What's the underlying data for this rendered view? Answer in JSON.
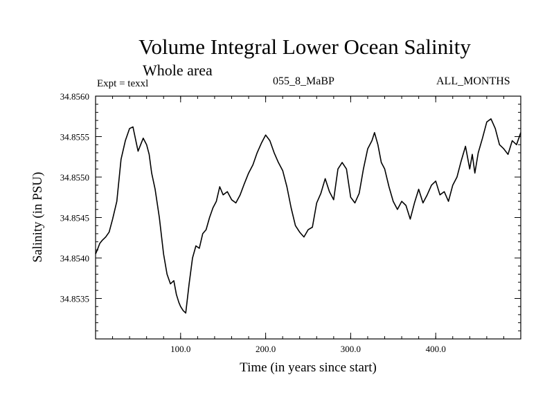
{
  "header": {
    "title": "Volume Integral Lower Ocean Salinity",
    "subtitle": "Whole area",
    "experiment": "Expt = texxl",
    "run_id": "055_8_MaBP",
    "period": "ALL_MONTHS"
  },
  "chart_data": {
    "type": "line",
    "title": "Volume Integral Lower Ocean Salinity",
    "subtitle": "Whole area",
    "xlabel": "Time (in years since start)",
    "ylabel": "Salinity (in PSU)",
    "xlim": [
      0,
      500
    ],
    "ylim": [
      34.853,
      34.856
    ],
    "grid": false,
    "x_ticks": [
      100,
      200,
      300,
      400
    ],
    "x_tick_labels": [
      "100.0",
      "200.0",
      "300.0",
      "400.0"
    ],
    "y_ticks": [
      34.8535,
      34.854,
      34.8545,
      34.855,
      34.8555,
      34.856
    ],
    "y_tick_labels": [
      "34.8535",
      "34.8540",
      "34.8545",
      "34.8550",
      "34.8555",
      "34.8560"
    ],
    "series": [
      {
        "name": "Salinity",
        "x": [
          0,
          2,
          5,
          8,
          12,
          16,
          20,
          25,
          30,
          35,
          40,
          44,
          48,
          50,
          53,
          56,
          60,
          63,
          66,
          70,
          75,
          80,
          84,
          88,
          92,
          95,
          98,
          100,
          103,
          106,
          110,
          114,
          118,
          122,
          126,
          130,
          134,
          138,
          142,
          146,
          150,
          155,
          160,
          165,
          170,
          175,
          180,
          185,
          190,
          195,
          200,
          205,
          210,
          215,
          220,
          225,
          230,
          235,
          240,
          245,
          250,
          255,
          260,
          265,
          270,
          275,
          280,
          285,
          290,
          295,
          300,
          305,
          310,
          315,
          320,
          325,
          328,
          332,
          336,
          340,
          345,
          350,
          355,
          360,
          365,
          370,
          375,
          380,
          385,
          390,
          395,
          400,
          405,
          410,
          415,
          420,
          425,
          430,
          435,
          440,
          443,
          446,
          450,
          455,
          460,
          465,
          470,
          475,
          480,
          485,
          490,
          495,
          500
        ],
        "values": [
          34.85405,
          34.8541,
          34.85418,
          34.85422,
          34.85426,
          34.85432,
          34.85448,
          34.8547,
          34.85522,
          34.85545,
          34.8556,
          34.85562,
          34.85542,
          34.85532,
          34.8554,
          34.85548,
          34.8554,
          34.85528,
          34.85505,
          34.85485,
          34.8545,
          34.85405,
          34.8538,
          34.85368,
          34.85372,
          34.85355,
          34.85345,
          34.8534,
          34.85335,
          34.85332,
          34.85368,
          34.854,
          34.85415,
          34.85412,
          34.8543,
          34.85435,
          34.8545,
          34.85462,
          34.8547,
          34.85488,
          34.85478,
          34.85482,
          34.85472,
          34.85468,
          34.85478,
          34.85492,
          34.85505,
          34.85515,
          34.8553,
          34.85542,
          34.85552,
          34.85545,
          34.8553,
          34.85518,
          34.85508,
          34.85488,
          34.85462,
          34.8544,
          34.85432,
          34.85426,
          34.85435,
          34.85438,
          34.85468,
          34.8548,
          34.85498,
          34.85482,
          34.85472,
          34.8551,
          34.85518,
          34.8551,
          34.85475,
          34.85468,
          34.8548,
          34.8551,
          34.85535,
          34.85545,
          34.85555,
          34.8554,
          34.85518,
          34.8551,
          34.85488,
          34.8547,
          34.8546,
          34.8547,
          34.85465,
          34.85448,
          34.85468,
          34.85485,
          34.85468,
          34.85478,
          34.8549,
          34.85495,
          34.85478,
          34.85482,
          34.8547,
          34.8549,
          34.855,
          34.8552,
          34.85538,
          34.8551,
          34.85528,
          34.85505,
          34.8553,
          34.85548,
          34.85568,
          34.85572,
          34.8556,
          34.8554,
          34.85535,
          34.85528,
          34.85545,
          34.8554,
          34.85555
        ]
      }
    ]
  }
}
